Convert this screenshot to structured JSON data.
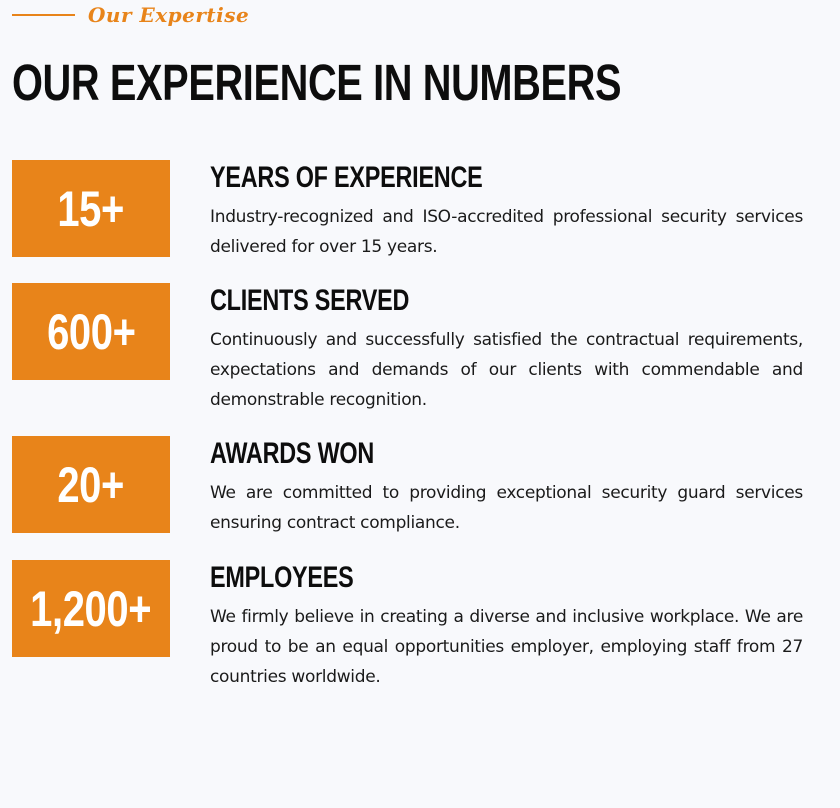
{
  "section": {
    "eyebrow": "Our Expertise",
    "title": "OUR EXPERIENCE IN NUMBERS"
  },
  "stats": [
    {
      "value": "15+",
      "title": "YEARS OF EXPERIENCE",
      "description": "Industry-recognized and ISO-accredited professional security services delivered for over 15 years."
    },
    {
      "value": "600+",
      "title": "CLIENTS SERVED",
      "description": "Continuously and successfully satisfied the contractual requirements, expectations and demands of our clients with commendable and demonstrable recognition."
    },
    {
      "value": "20+",
      "title": "AWARDS WON",
      "description": "We are committed to providing exceptional security guard services ensuring contract compliance."
    },
    {
      "value": "1,200+",
      "title": "EMPLOYEES",
      "description": "We firmly believe in creating a diverse and inclusive workplace. We are proud to be an equal opportunities employer, employing staff from 27 countries worldwide."
    }
  ],
  "colors": {
    "accent": "#e8841a",
    "background": "#f8f9fc",
    "heading": "#0d0d0d",
    "body_text": "#1a1a1a"
  }
}
